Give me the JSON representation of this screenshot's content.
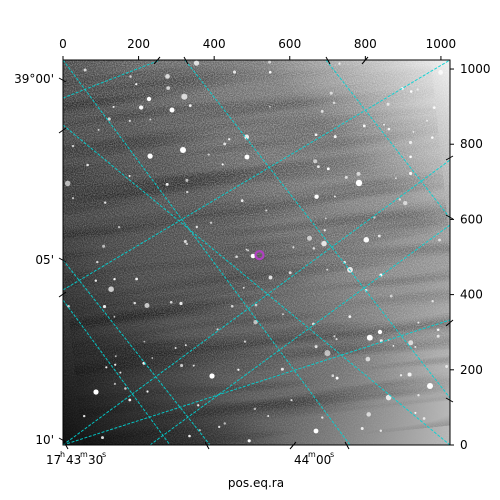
{
  "figure": {
    "xlabel": "pos.eq.ra",
    "colors": {
      "grid": "#00d4d4",
      "marker": "#b040c0",
      "frame": "#000000"
    }
  },
  "chart_data": {
    "type": "image",
    "pixel_axes": {
      "x": {
        "range": [
          0,
          1024
        ],
        "ticks": [
          0,
          200,
          400,
          600,
          800,
          1000
        ],
        "labels": [
          "0",
          "200",
          "400",
          "600",
          "800",
          "1000"
        ],
        "position": "top"
      },
      "y": {
        "range": [
          0,
          1024
        ],
        "ticks": [
          0,
          200,
          400,
          600,
          800,
          1000
        ],
        "labels": [
          "0",
          "200",
          "400",
          "600",
          "800",
          "1000"
        ],
        "position": "right"
      }
    },
    "world_axes": {
      "dec": {
        "labels": [
          "39°00'",
          "05'",
          "10'"
        ],
        "position": "left"
      },
      "ra": {
        "labels": [
          "17h43m30s",
          "44m00s"
        ],
        "position": "bottom",
        "title": "pos.eq.ra"
      }
    },
    "marker": {
      "x": 520,
      "y": 505,
      "shape": "circle"
    },
    "grid": true
  }
}
